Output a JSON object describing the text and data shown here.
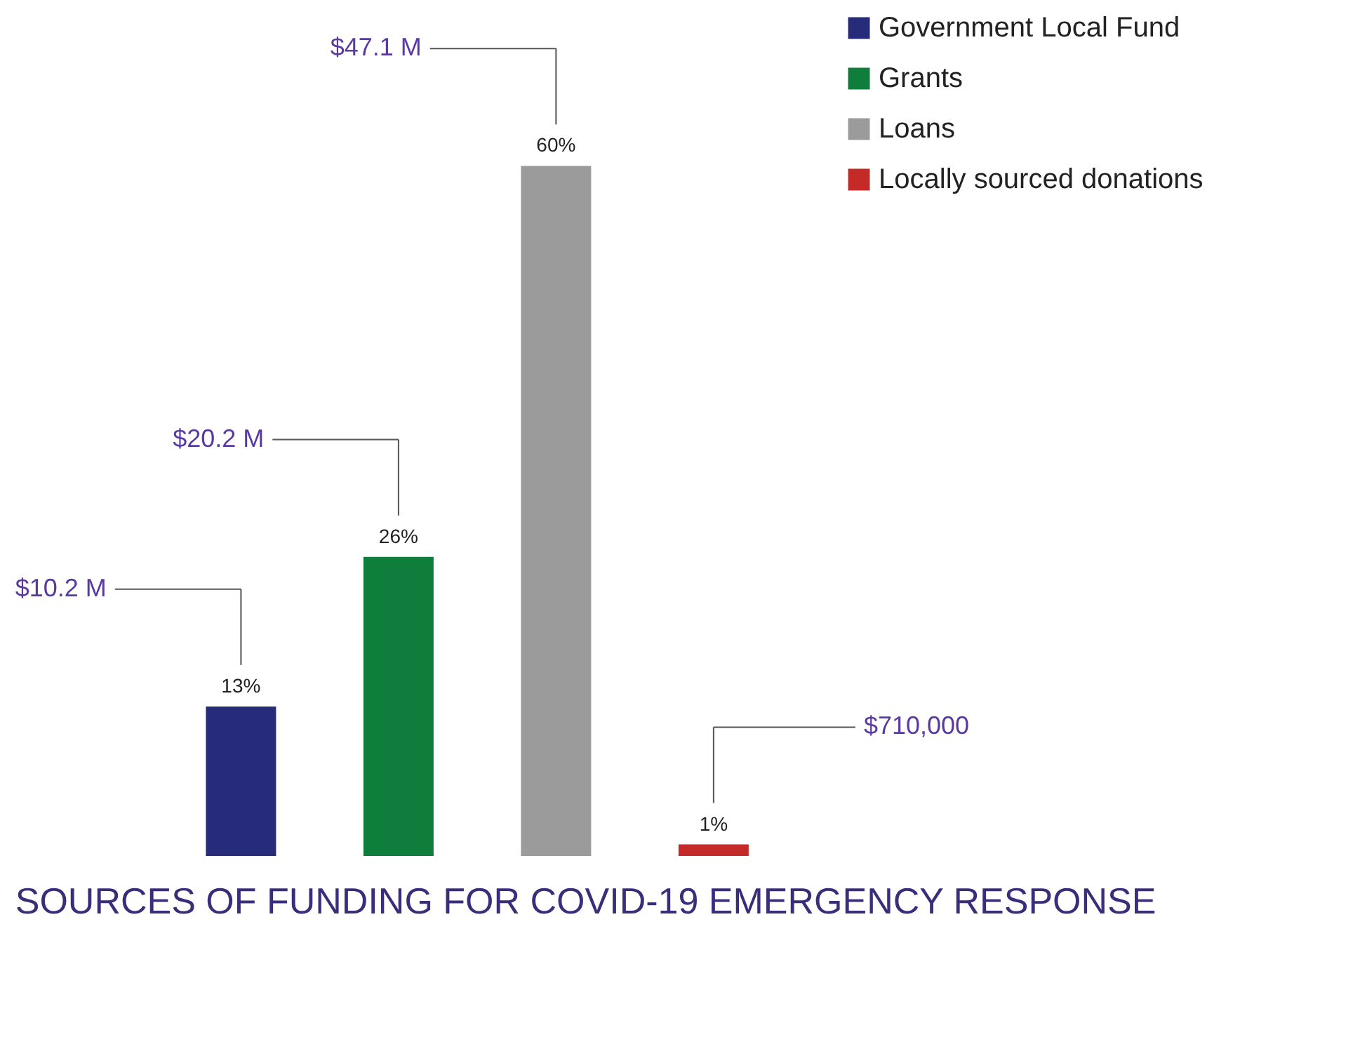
{
  "chart_data": {
    "type": "bar",
    "title": "SOURCES OF FUNDING FOR COVID-19 EMERGENCY RESPONSE",
    "categories": [
      null,
      null,
      null,
      null
    ],
    "series": [
      {
        "name": "Government Local Fund",
        "color": "#262b7a",
        "values": [
          13,
          null,
          null,
          null
        ],
        "value_labels": [
          "13%",
          null,
          null,
          null
        ]
      },
      {
        "name": "Grants",
        "color": "#0f7d3b",
        "values": [
          null,
          26,
          null,
          null
        ],
        "value_labels": [
          null,
          "26%",
          null,
          null
        ]
      },
      {
        "name": "Loans",
        "color": "#9b9b9b",
        "values": [
          null,
          null,
          60,
          null
        ],
        "value_labels": [
          null,
          null,
          "60%",
          null
        ]
      },
      {
        "name": "Locally sourced donations",
        "color": "#c42a27",
        "values": [
          null,
          null,
          null,
          1
        ],
        "value_labels": [
          null,
          null,
          null,
          "1%"
        ]
      }
    ],
    "annotations": [
      "$10.2 M",
      "$20.2 M",
      "$47.1 M",
      "$710,000"
    ],
    "stacked": true,
    "legend": "right",
    "tick_labels": false
  }
}
